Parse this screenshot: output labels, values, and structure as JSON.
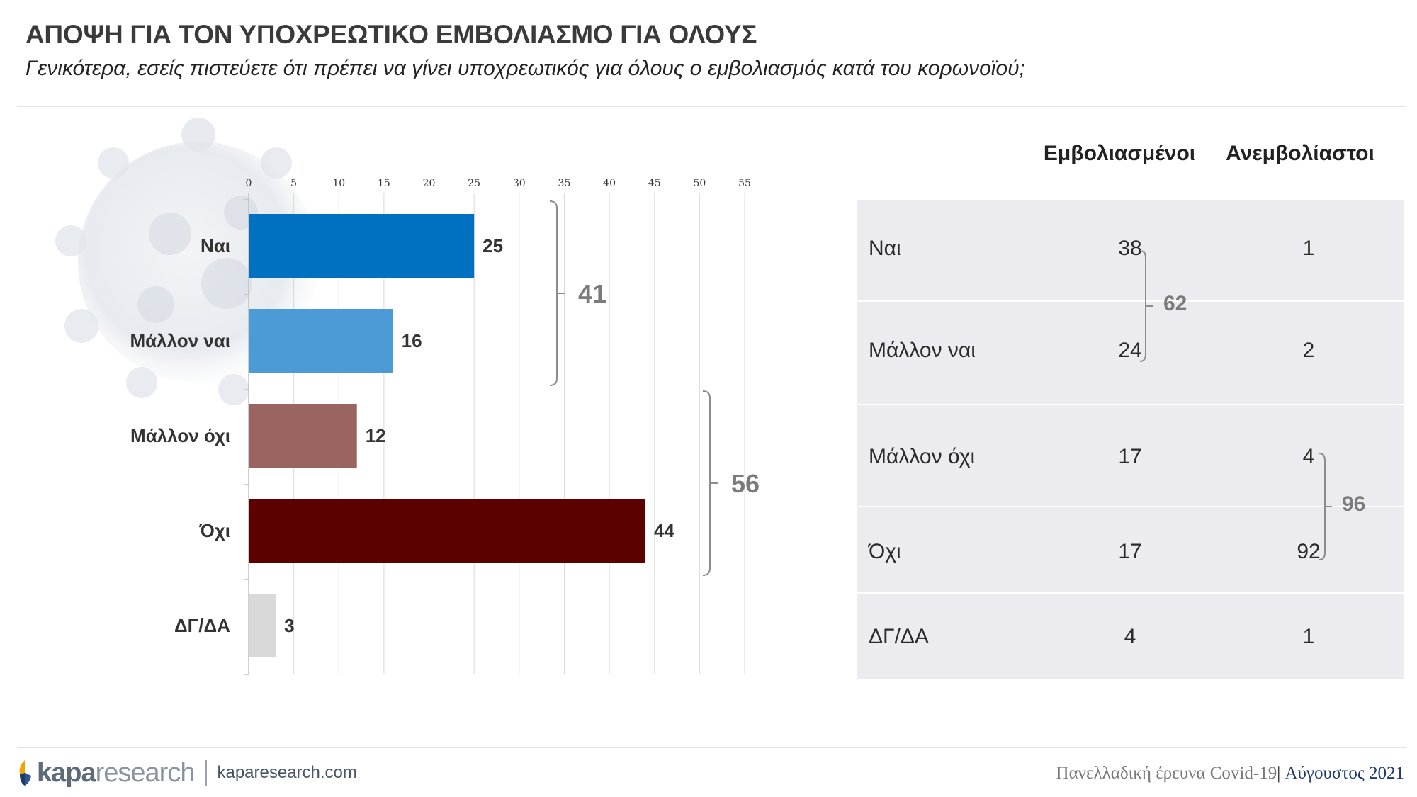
{
  "header": {
    "title": "ΑΠΟΨΗ ΓΙΑ ΤΟΝ ΥΠΟΧΡΕΩΤΙΚΟ ΕΜΒΟΛΙΑΣΜΟ ΓΙΑ ΟΛΟΥΣ",
    "subtitle": "Γενικότερα, εσείς πιστεύετε ότι πρέπει να γίνει υποχρεωτικός για όλους ο εμβολιασμός κατά του κορωνοϊού;"
  },
  "chart_data": {
    "type": "bar",
    "orientation": "horizontal",
    "categories": [
      "Ναι",
      "Μάλλον ναι",
      "Μάλλον όχι",
      "Όχι",
      "ΔΓ/ΔΑ"
    ],
    "values": [
      25,
      16,
      12,
      44,
      3
    ],
    "value_labels": [
      "25",
      "16",
      "12",
      "44",
      "3"
    ],
    "colors": [
      "#0070c0",
      "#4d9bd6",
      "#9a6461",
      "#5c0000",
      "#d9d9d9"
    ],
    "xlim": [
      0,
      55
    ],
    "xticks": [
      0,
      5,
      10,
      15,
      20,
      25,
      30,
      35,
      40,
      45,
      50,
      55
    ],
    "xtick_labels": [
      "0",
      "5",
      "10",
      "15",
      "20",
      "25",
      "30",
      "35",
      "40",
      "45",
      "50",
      "55"
    ],
    "axis_position": "top",
    "grid": true,
    "groups": [
      {
        "label": "41",
        "from": 0,
        "to": 1
      },
      {
        "label": "56",
        "from": 2,
        "to": 3
      }
    ]
  },
  "table": {
    "columns": [
      "Εμβολιασμένοι",
      "Ανεμβολίαστοι"
    ],
    "rows": [
      {
        "label": "Ναι",
        "vaccinated": "38",
        "unvaccinated": "1"
      },
      {
        "label": "Μάλλον ναι",
        "vaccinated": "24",
        "unvaccinated": "2"
      },
      {
        "label": "Μάλλον όχι",
        "vaccinated": "17",
        "unvaccinated": "4"
      },
      {
        "label": "Όχι",
        "vaccinated": "17",
        "unvaccinated": "92"
      },
      {
        "label": "ΔΓ/ΔΑ",
        "vaccinated": "4",
        "unvaccinated": "1"
      }
    ],
    "vaccinated_group": "62",
    "unvaccinated_group": "96"
  },
  "footer": {
    "logo_bold": "kapa",
    "logo_light": "research",
    "url": "kaparesearch.com",
    "survey": "Πανελλαδική έρευνα Covid-19",
    "separator": "|",
    "date": "Αύγουστος 2021"
  },
  "colors": {
    "brace": "#8c8c8c",
    "table_bg": "#ebebf0"
  },
  "icons": {
    "background": "coronavirus-illustration",
    "logo": "kapa-logo-mark"
  }
}
